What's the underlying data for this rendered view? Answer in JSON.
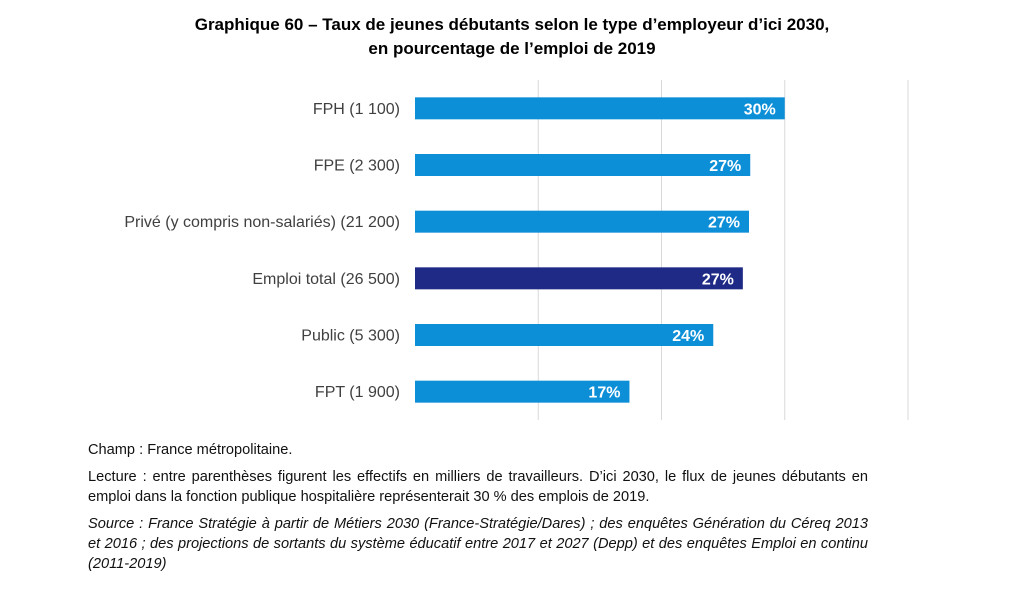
{
  "title_line1": "Graphique 60 – Taux de jeunes débutants selon le type d’employeur d’ici 2030,",
  "title_line2": "en pourcentage de l’emploi de 2019",
  "chart_data": {
    "type": "bar",
    "orientation": "horizontal",
    "categories": [
      "FPH (1 100)",
      "FPE (2 300)",
      "Privé (y compris non-salariés) (21 200)",
      "Emploi total (26 500)",
      "Public (5 300)",
      "FPT (1 900)"
    ],
    "values": [
      30,
      27.2,
      27.1,
      26.6,
      24.2,
      17.4
    ],
    "data_labels": [
      "30%",
      "27%",
      "27%",
      "27%",
      "24%",
      "17%"
    ],
    "highlight_category": "Emploi total (26 500)",
    "xlim": [
      0,
      40
    ],
    "grid": true,
    "colors": {
      "bar": "#0d8fd8",
      "highlight": "#1e2a86",
      "label": "#ffffff",
      "grid": "#d9d9d9"
    }
  },
  "notes": {
    "champ": "Champ : France métropolitaine.",
    "lecture": "Lecture : entre parenthèses figurent les effectifs en milliers de travailleurs. D’ici 2030, le flux de jeunes débutants en emploi dans la fonction publique hospitalière représenterait 30 % des emplois de 2019.",
    "source": "Source : France Stratégie à partir de Métiers 2030 (France-Stratégie/Dares) ; des enquêtes Génération du Céreq 2013 et 2016 ; des projections de sortants du système éducatif entre 2017 et 2027 (Depp) et des enquêtes Emploi en continu (2011-2019)"
  }
}
